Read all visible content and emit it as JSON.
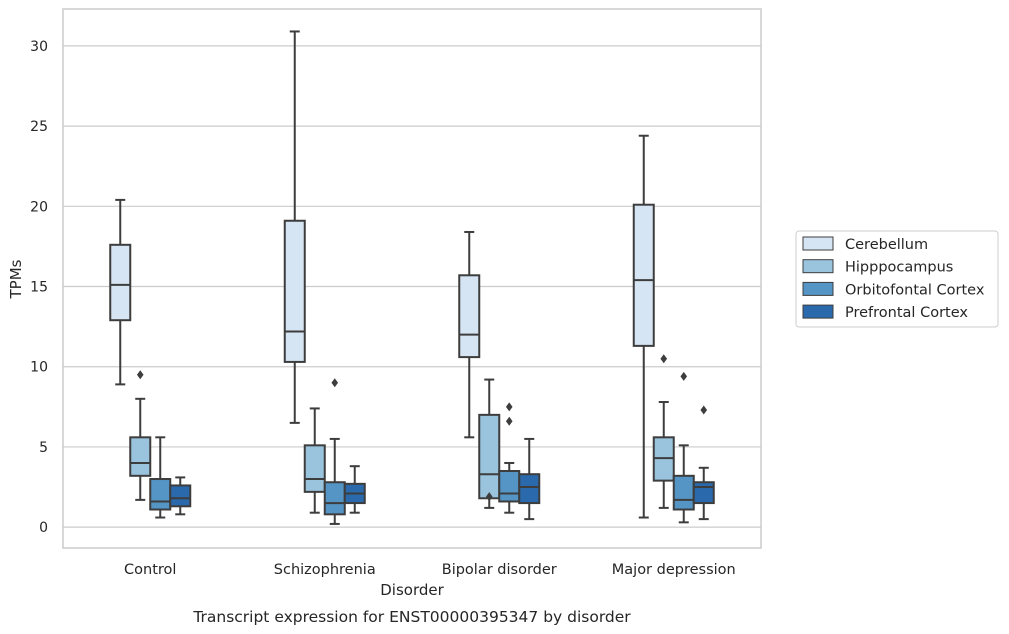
{
  "chart_data": {
    "type": "box",
    "title": "",
    "caption": "Transcript expression for ENST00000395347 by disorder",
    "xlabel": "Disorder",
    "ylabel": "TPMs",
    "ylim": [
      -1.3,
      32.3
    ],
    "yticks": [
      0,
      5,
      10,
      15,
      20,
      25,
      30
    ],
    "grid": "horizontal",
    "legend_position": "right (outside plot)",
    "categories": [
      "Control",
      "Schizophrenia",
      "Bipolar disorder",
      "Major depression"
    ],
    "series": [
      {
        "name": "Cerebellum",
        "color": "#d6e5f3",
        "boxes": [
          {
            "whisker_low": 8.9,
            "q1": 12.9,
            "median": 15.1,
            "q3": 17.6,
            "whisker_high": 20.4,
            "outliers": []
          },
          {
            "whisker_low": 6.5,
            "q1": 10.3,
            "median": 12.2,
            "q3": 19.1,
            "whisker_high": 30.9,
            "outliers": []
          },
          {
            "whisker_low": 5.6,
            "q1": 10.6,
            "median": 12.0,
            "q3": 15.7,
            "whisker_high": 18.4,
            "outliers": []
          },
          {
            "whisker_low": 0.6,
            "q1": 11.3,
            "median": 15.4,
            "q3": 20.1,
            "whisker_high": 24.4,
            "outliers": []
          }
        ]
      },
      {
        "name": "Hipppocampus",
        "color": "#9ac4de",
        "boxes": [
          {
            "whisker_low": 1.7,
            "q1": 3.2,
            "median": 4.0,
            "q3": 5.6,
            "whisker_high": 8.0,
            "outliers": [
              9.5
            ]
          },
          {
            "whisker_low": 0.9,
            "q1": 2.2,
            "median": 3.0,
            "q3": 5.1,
            "whisker_high": 7.4,
            "outliers": []
          },
          {
            "whisker_low": 1.2,
            "q1": 1.8,
            "median": 3.3,
            "q3": 7.0,
            "whisker_high": 9.2,
            "outliers": [
              1.9
            ]
          },
          {
            "whisker_low": 1.2,
            "q1": 2.9,
            "median": 4.3,
            "q3": 5.6,
            "whisker_high": 7.8,
            "outliers": [
              10.5
            ]
          }
        ]
      },
      {
        "name": "Orbitofontal Cortex",
        "color": "#5495c6",
        "boxes": [
          {
            "whisker_low": 0.6,
            "q1": 1.1,
            "median": 1.6,
            "q3": 3.0,
            "whisker_high": 5.6,
            "outliers": []
          },
          {
            "whisker_low": 0.2,
            "q1": 0.8,
            "median": 1.5,
            "q3": 2.8,
            "whisker_high": 5.5,
            "outliers": [
              9.0
            ]
          },
          {
            "whisker_low": 0.9,
            "q1": 1.6,
            "median": 2.1,
            "q3": 3.5,
            "whisker_high": 4.0,
            "outliers": [
              6.6,
              7.5
            ]
          },
          {
            "whisker_low": 0.3,
            "q1": 1.1,
            "median": 1.7,
            "q3": 3.2,
            "whisker_high": 5.1,
            "outliers": [
              9.4
            ]
          }
        ]
      },
      {
        "name": "Prefrontal Cortex",
        "color": "#2a6aac",
        "boxes": [
          {
            "whisker_low": 0.8,
            "q1": 1.3,
            "median": 1.8,
            "q3": 2.6,
            "whisker_high": 3.1,
            "outliers": []
          },
          {
            "whisker_low": 0.9,
            "q1": 1.5,
            "median": 2.1,
            "q3": 2.7,
            "whisker_high": 3.8,
            "outliers": []
          },
          {
            "whisker_low": 0.5,
            "q1": 1.5,
            "median": 2.5,
            "q3": 3.3,
            "whisker_high": 5.5,
            "outliers": []
          },
          {
            "whisker_low": 0.5,
            "q1": 1.5,
            "median": 2.5,
            "q3": 2.8,
            "whisker_high": 3.7,
            "outliers": [
              7.3
            ]
          }
        ]
      }
    ]
  }
}
